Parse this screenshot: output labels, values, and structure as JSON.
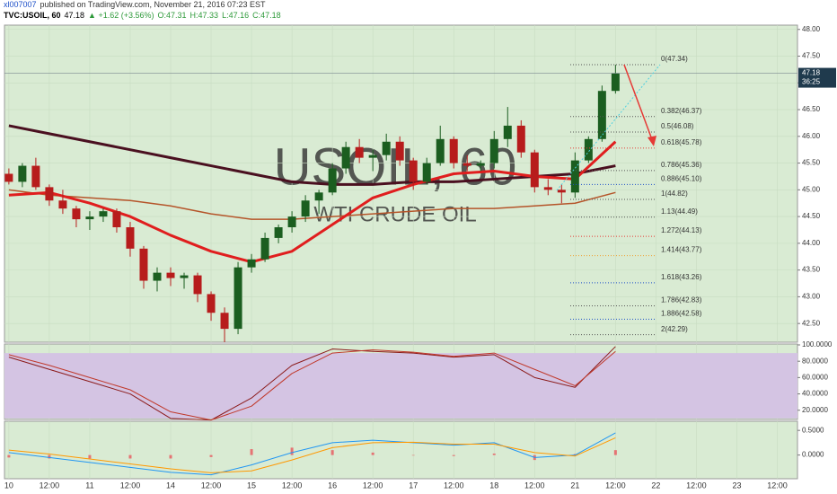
{
  "header": {
    "author": "xl007007",
    "published": "published on TradingView.com, November 21, 2016 07:23 EST",
    "symbol": "TVC:USOIL, 60",
    "price": "47.18",
    "change": "▲ +1.62 (+3.56%)",
    "ohlc": [
      "O:47.31",
      "H:47.33",
      "L:47.16",
      "C:47.18"
    ]
  },
  "chart_data": [
    {
      "type": "candlestick",
      "watermark": [
        "USOIL, 60",
        "WTI CRUDE OIL"
      ],
      "up_color": "#1b5e20",
      "down_color": "#b71c1c",
      "xlim": [
        -1.3,
        234
      ],
      "xticks": [
        {
          "value": 0,
          "label": "10"
        },
        {
          "value": 12,
          "label": "12:00"
        },
        {
          "value": 24,
          "label": "11"
        },
        {
          "value": 36,
          "label": "12:00"
        },
        {
          "value": 48,
          "label": "14"
        },
        {
          "value": 60,
          "label": "12:00"
        },
        {
          "value": 72,
          "label": "15"
        },
        {
          "value": 84,
          "label": "12:00"
        },
        {
          "value": 96,
          "label": "16"
        },
        {
          "value": 108,
          "label": "12:00"
        },
        {
          "value": 120,
          "label": "17"
        },
        {
          "value": 132,
          "label": "12:00"
        },
        {
          "value": 144,
          "label": "18"
        },
        {
          "value": 156,
          "label": "12:00"
        },
        {
          "value": 168,
          "label": "21"
        },
        {
          "value": 180,
          "label": "12:00"
        },
        {
          "value": 192,
          "label": "22"
        },
        {
          "value": 204,
          "label": "12:00"
        },
        {
          "value": 216,
          "label": "23"
        },
        {
          "value": 228,
          "label": "12:00"
        }
      ],
      "ylim": [
        42.15,
        48.08
      ],
      "yticks": [
        {
          "value": 42.5,
          "label": "42.50"
        },
        {
          "value": 43,
          "label": "43.00"
        },
        {
          "value": 43.5,
          "label": "43.50"
        },
        {
          "value": 44,
          "label": "44.00"
        },
        {
          "value": 44.5,
          "label": "44.50"
        },
        {
          "value": 45,
          "label": "45.00"
        },
        {
          "value": 45.5,
          "label": "45.50"
        },
        {
          "value": 46,
          "label": "46.00"
        },
        {
          "value": 46.5,
          "label": "46.50"
        },
        {
          "value": 47,
          "label": "47.00"
        },
        {
          "value": 47.5,
          "label": "47.50"
        },
        {
          "value": 48,
          "label": "48.00"
        }
      ],
      "grid": true,
      "candles": {
        "x": [
          0,
          4,
          8,
          12,
          16,
          20,
          24,
          28,
          32,
          36,
          40,
          44,
          48,
          52,
          56,
          60,
          64,
          68,
          72,
          76,
          80,
          84,
          88,
          92,
          96,
          100,
          104,
          108,
          112,
          116,
          120,
          124,
          128,
          132,
          136,
          140,
          144,
          148,
          152,
          156,
          160,
          164,
          168,
          172,
          176,
          180
        ],
        "ohlc": [
          [
            45.3,
            45.4,
            45.1,
            45.15
          ],
          [
            45.15,
            45.5,
            45.05,
            45.45
          ],
          [
            45.45,
            45.6,
            45.0,
            45.05
          ],
          [
            45.05,
            45.1,
            44.7,
            44.8
          ],
          [
            44.8,
            45.0,
            44.55,
            44.65
          ],
          [
            44.65,
            44.7,
            44.3,
            44.45
          ],
          [
            44.45,
            44.6,
            44.25,
            44.5
          ],
          [
            44.5,
            44.65,
            44.4,
            44.6
          ],
          [
            44.6,
            44.65,
            44.2,
            44.3
          ],
          [
            44.3,
            44.4,
            43.75,
            43.9
          ],
          [
            43.9,
            43.95,
            43.15,
            43.3
          ],
          [
            43.3,
            43.55,
            43.1,
            43.45
          ],
          [
            43.45,
            43.55,
            43.2,
            43.35
          ],
          [
            43.35,
            43.45,
            43.15,
            43.4
          ],
          [
            43.4,
            43.45,
            42.9,
            43.05
          ],
          [
            43.05,
            43.1,
            42.55,
            42.7
          ],
          [
            42.7,
            42.8,
            42.15,
            42.4
          ],
          [
            42.4,
            43.65,
            42.3,
            43.55
          ],
          [
            43.55,
            43.8,
            43.45,
            43.7
          ],
          [
            43.7,
            44.2,
            43.65,
            44.1
          ],
          [
            44.1,
            44.35,
            44.0,
            44.3
          ],
          [
            44.3,
            44.6,
            44.2,
            44.5
          ],
          [
            44.5,
            44.9,
            44.4,
            44.8
          ],
          [
            44.8,
            45.0,
            44.55,
            44.95
          ],
          [
            44.95,
            45.5,
            44.9,
            45.4
          ],
          [
            45.4,
            45.9,
            45.3,
            45.8
          ],
          [
            45.8,
            45.95,
            45.5,
            45.6
          ],
          [
            45.6,
            45.75,
            45.35,
            45.65
          ],
          [
            45.65,
            46.05,
            45.55,
            45.9
          ],
          [
            45.9,
            46.0,
            45.45,
            45.55
          ],
          [
            45.55,
            45.6,
            45.0,
            45.15
          ],
          [
            45.15,
            45.6,
            45.1,
            45.5
          ],
          [
            45.5,
            46.2,
            45.45,
            45.95
          ],
          [
            45.95,
            46.0,
            45.4,
            45.5
          ],
          [
            45.5,
            45.65,
            45.35,
            45.45
          ],
          [
            45.45,
            45.55,
            45.35,
            45.5
          ],
          [
            45.5,
            46.1,
            45.4,
            45.95
          ],
          [
            45.95,
            46.55,
            45.8,
            46.2
          ],
          [
            46.2,
            46.3,
            45.6,
            45.7
          ],
          [
            45.7,
            45.75,
            44.95,
            45.05
          ],
          [
            45.05,
            45.2,
            44.9,
            45.0
          ],
          [
            45.0,
            45.1,
            44.75,
            44.95
          ],
          [
            44.95,
            45.7,
            44.85,
            45.55
          ],
          [
            45.55,
            46.0,
            45.5,
            45.95
          ],
          [
            45.95,
            46.95,
            45.9,
            46.85
          ],
          [
            46.85,
            47.34,
            46.8,
            47.18
          ]
        ]
      },
      "lines": [
        {
          "color": "#b5552a",
          "width": 1.5,
          "x": [
            0,
            12,
            24,
            36,
            48,
            60,
            72,
            84,
            96,
            108,
            120,
            132,
            144,
            156,
            168,
            180
          ],
          "values": [
            45.0,
            44.9,
            44.85,
            44.8,
            44.7,
            44.55,
            44.45,
            44.45,
            44.5,
            44.55,
            44.6,
            44.65,
            44.65,
            44.7,
            44.75,
            44.95
          ]
        },
        {
          "color": "#4a1020",
          "width": 3,
          "x": [
            0,
            12,
            24,
            36,
            48,
            60,
            72,
            84,
            96,
            108,
            120,
            132,
            144,
            156,
            168,
            180
          ],
          "values": [
            46.2,
            46.05,
            45.9,
            45.75,
            45.6,
            45.45,
            45.3,
            45.15,
            45.1,
            45.1,
            45.15,
            45.15,
            45.2,
            45.25,
            45.3,
            45.45
          ]
        },
        {
          "color": "#e01e1e",
          "width": 3,
          "x": [
            0,
            12,
            24,
            36,
            48,
            60,
            72,
            84,
            96,
            108,
            120,
            132,
            144,
            156,
            168,
            180
          ],
          "values": [
            44.9,
            44.95,
            44.75,
            44.5,
            44.15,
            43.85,
            43.65,
            43.85,
            44.35,
            44.85,
            45.1,
            45.3,
            45.35,
            45.25,
            45.2,
            45.9
          ]
        }
      ],
      "fib_levels": [
        {
          "label": "0(47.34)",
          "value": 47.34,
          "color": "#555555"
        },
        {
          "label": "0.382(46.37)",
          "value": 46.37,
          "color": "#555555"
        },
        {
          "label": "0.5(46.08)",
          "value": 46.08,
          "color": "#555555"
        },
        {
          "label": "0.618(45.78)",
          "value": 45.78,
          "color": "#e53935"
        },
        {
          "label": "0.786(45.36)",
          "value": 45.36,
          "color": "#555555"
        },
        {
          "label": "0.886(45.10)",
          "value": 45.1,
          "color": "#1e50c8"
        },
        {
          "label": "1(44.82)",
          "value": 44.82,
          "color": "#555555"
        },
        {
          "label": "1.13(44.49)",
          "value": 44.49,
          "color": "#555555"
        },
        {
          "label": "1.272(44.13)",
          "value": 44.13,
          "color": "#e53935"
        },
        {
          "label": "1.414(43.77)",
          "value": 43.77,
          "color": "#f0a030"
        },
        {
          "label": "1.618(43.26)",
          "value": 43.26,
          "color": "#1e50c8"
        },
        {
          "label": "1.786(42.83)",
          "value": 42.83,
          "color": "#555555"
        },
        {
          "label": "1.886(42.58)",
          "value": 42.58,
          "color": "#1e50c8"
        },
        {
          "label": "2(42.29)",
          "value": 42.29,
          "color": "#555555"
        }
      ],
      "last_price": {
        "value": 47.18,
        "label": "47.18"
      },
      "countdown": "36:25"
    },
    {
      "type": "line",
      "ylim": [
        8.7,
        101.1
      ],
      "band": [
        10,
        90
      ],
      "band_color": "#d4c4e3",
      "yticks": [
        {
          "value": 20,
          "label": "20.0000"
        },
        {
          "value": 40,
          "label": "40.0000"
        },
        {
          "value": 60,
          "label": "60.0000"
        },
        {
          "value": 80,
          "label": "80.0000"
        },
        {
          "value": 100,
          "label": "100.0000"
        }
      ],
      "lines": [
        {
          "color": "#8b1a1a",
          "width": 1,
          "x": [
            0,
            12,
            24,
            36,
            48,
            60,
            72,
            84,
            96,
            108,
            120,
            132,
            144,
            156,
            168,
            180
          ],
          "values": [
            85,
            70,
            55,
            40,
            10,
            8,
            35,
            75,
            95,
            92,
            90,
            85,
            88,
            60,
            48,
            98
          ]
        },
        {
          "color": "#c0392b",
          "width": 1,
          "x": [
            0,
            12,
            24,
            36,
            48,
            60,
            72,
            84,
            96,
            108,
            120,
            132,
            144,
            156,
            168,
            180
          ],
          "values": [
            88,
            75,
            60,
            45,
            18,
            8,
            25,
            65,
            90,
            94,
            91,
            86,
            90,
            70,
            50,
            92
          ]
        }
      ]
    },
    {
      "type": "macd",
      "ylim": [
        -0.48,
        0.685
      ],
      "yticks": [
        {
          "value": 0,
          "label": "0.0000"
        },
        {
          "value": 0.5,
          "label": "0.5000"
        }
      ],
      "histogram": {
        "color": "#e57373",
        "x": [
          0,
          12,
          24,
          36,
          48,
          60,
          72,
          84,
          96,
          108,
          120,
          132,
          144,
          156,
          168,
          180
        ],
        "values": [
          -0.05,
          -0.07,
          -0.07,
          -0.07,
          -0.07,
          -0.04,
          0.12,
          0.15,
          0.1,
          0.05,
          -0.01,
          -0.02,
          0.03,
          -0.1,
          0.02,
          0.1
        ]
      },
      "lines": [
        {
          "color": "#2196f3",
          "width": 1,
          "x": [
            0,
            12,
            24,
            36,
            48,
            60,
            72,
            84,
            96,
            108,
            120,
            132,
            144,
            156,
            168,
            180
          ],
          "values": [
            0.05,
            -0.05,
            -0.15,
            -0.25,
            -0.35,
            -0.4,
            -0.2,
            0.05,
            0.25,
            0.3,
            0.25,
            0.2,
            0.25,
            -0.05,
            0.0,
            0.45
          ]
        },
        {
          "color": "#ff9800",
          "width": 1,
          "x": [
            0,
            12,
            24,
            36,
            48,
            60,
            72,
            84,
            96,
            108,
            120,
            132,
            144,
            156,
            168,
            180
          ],
          "values": [
            0.1,
            0.02,
            -0.08,
            -0.18,
            -0.28,
            -0.36,
            -0.32,
            -0.1,
            0.15,
            0.25,
            0.26,
            0.22,
            0.22,
            0.05,
            -0.02,
            0.35
          ]
        }
      ]
    }
  ]
}
